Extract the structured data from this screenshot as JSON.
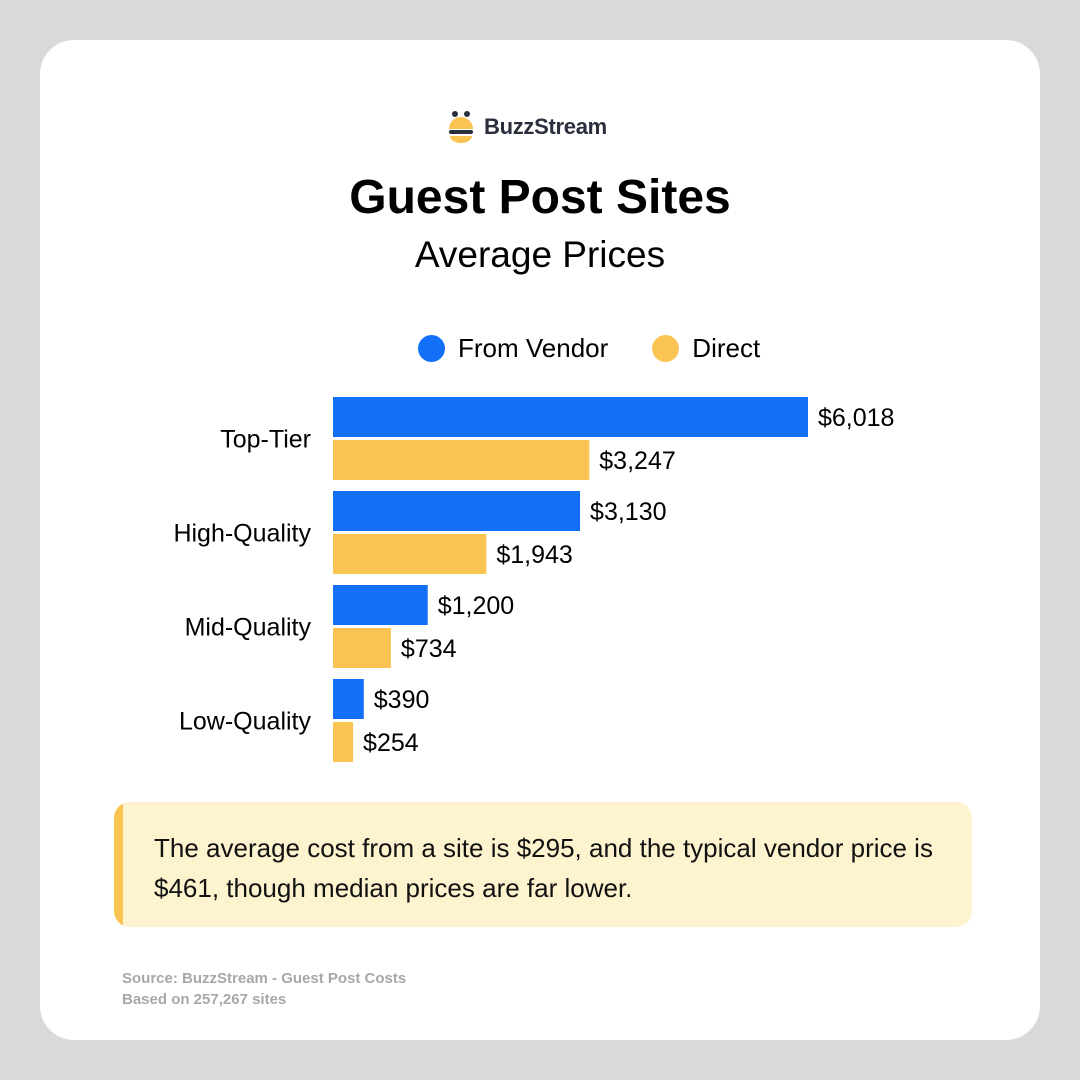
{
  "brand": {
    "name": "BuzzStream",
    "icon": "buzzstream-bee-logo-icon"
  },
  "colors": {
    "vendor": "#1170f7",
    "direct": "#f9c452",
    "callout_bg": "#fef3cf"
  },
  "chart_data": {
    "type": "bar",
    "orientation": "horizontal",
    "title": "Guest Post Sites",
    "subtitle": "Average Prices",
    "categories": [
      "Top-Tier",
      "High-Quality",
      "Mid-Quality",
      "Low-Quality"
    ],
    "series": [
      {
        "name": "From Vendor",
        "color": "#1170f7",
        "values": [
          6018,
          3130,
          1200,
          390
        ],
        "labels": [
          "$6,018",
          "$3,130",
          "$1,200",
          "$390"
        ]
      },
      {
        "name": "Direct",
        "color": "#f9c452",
        "values": [
          3247,
          1943,
          734,
          254
        ],
        "labels": [
          "$3,247",
          "$1,943",
          "$734",
          "$254"
        ]
      }
    ],
    "xlim": [
      0,
      6018
    ],
    "legend": "top",
    "grid": false
  },
  "callout": {
    "text": "The average cost from a site is $295, and the typical vendor price is $461, though median prices are far lower."
  },
  "source": {
    "line1": "Source: BuzzStream - Guest Post Costs",
    "line2": "Based on 257,267 sites"
  }
}
